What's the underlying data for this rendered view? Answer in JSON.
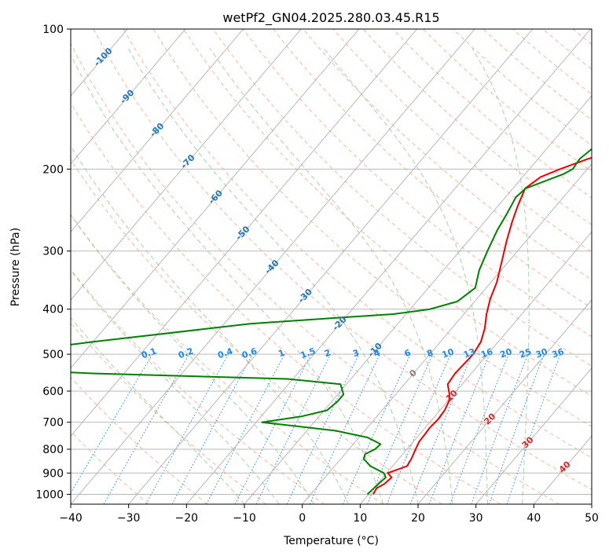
{
  "chart_data": {
    "type": "line",
    "title": "wetPf2_GN04.2025.280.03.45.R15",
    "xlabel": "Temperature (°C)",
    "ylabel": "Pressure (hPa)",
    "x_scale": "linear",
    "y_scale": "log",
    "xlim": [
      -40,
      50
    ],
    "ylim": [
      1050,
      100
    ],
    "x_ticks": [
      "−40",
      "−30",
      "−20",
      "−10",
      "0",
      "10",
      "20",
      "30",
      "40",
      "50"
    ],
    "y_ticks": [
      "100",
      "200",
      "300",
      "400",
      "500",
      "600",
      "700",
      "800",
      "900",
      "1000"
    ],
    "isotherm_labels": [
      "-100",
      "-90",
      "-80",
      "-70",
      "-60",
      "-50",
      "-40",
      "-30",
      "-20",
      "-10",
      "0",
      "10",
      "20",
      "30",
      "40"
    ],
    "mixing_ratio_labels": [
      "0.1",
      "0.2",
      "0.4",
      "0.6",
      "1",
      "1.5",
      "2",
      "3",
      "4",
      "6",
      "8",
      "10",
      "13",
      "16",
      "20",
      "25",
      "30",
      "36"
    ],
    "colors": {
      "temperature": "#ee0000",
      "dewpoint": "#008000",
      "isotherm_cold_label": "#1f77b4",
      "isotherm_warm_label": "#d62728",
      "mixing_ratio": "#1e88e5",
      "dry_adiabat": "#f4a582",
      "moist_adiabat": "#90c890",
      "grid": "#b0b0b0"
    },
    "series": [
      {
        "role": "temperature",
        "points": [
          [
            10.8,
            1000
          ],
          [
            10.5,
            970
          ],
          [
            11.2,
            950
          ],
          [
            11.5,
            920
          ],
          [
            10.2,
            900
          ],
          [
            12.5,
            870
          ],
          [
            12.2,
            840
          ],
          [
            11.5,
            800
          ],
          [
            11,
            770
          ],
          [
            10.9,
            740
          ],
          [
            10.8,
            720
          ],
          [
            11.0,
            690
          ],
          [
            10.8,
            660
          ],
          [
            10.2,
            630
          ],
          [
            9.3,
            610
          ],
          [
            7.5,
            580
          ],
          [
            7.2,
            550
          ],
          [
            7.5,
            500
          ],
          [
            7.0,
            470
          ],
          [
            5.7,
            440
          ],
          [
            3.9,
            410
          ],
          [
            2.3,
            380
          ],
          [
            1.0,
            350
          ],
          [
            -1.6,
            310
          ],
          [
            -3.4,
            285
          ],
          [
            -5.2,
            260
          ],
          [
            -6.6,
            240
          ],
          [
            -7.9,
            220
          ],
          [
            -6.9,
            208
          ],
          [
            -4.7,
            200
          ],
          [
            -1.3,
            190
          ],
          [
            3.7,
            180
          ],
          [
            7.2,
            170
          ],
          [
            9.7,
            155
          ],
          [
            12.2,
            140
          ],
          [
            14.2,
            130
          ],
          [
            15.5,
            120
          ],
          [
            18.9,
            110
          ],
          [
            23.8,
            100
          ]
        ]
      },
      {
        "role": "dewpoint",
        "points": [
          [
            9.8,
            1000
          ],
          [
            10.2,
            950
          ],
          [
            10.5,
            920
          ],
          [
            9.5,
            900
          ],
          [
            6.2,
            870
          ],
          [
            4.0,
            840
          ],
          [
            3.5,
            820
          ],
          [
            4.5,
            800
          ],
          [
            4.7,
            780
          ],
          [
            1.5,
            755
          ],
          [
            -5.0,
            730
          ],
          [
            -19.0,
            700
          ],
          [
            -13.0,
            680
          ],
          [
            -9.5,
            660
          ],
          [
            -9.0,
            630
          ],
          [
            -9.0,
            610
          ],
          [
            -11.0,
            580
          ],
          [
            -21.0,
            565
          ],
          [
            -55.0,
            550
          ],
          [
            -70.0,
            540
          ],
          [
            -70.0,
            490
          ],
          [
            -60.0,
            470
          ],
          [
            -35.5,
            430
          ],
          [
            -22.0,
            418
          ],
          [
            -12.2,
            410
          ],
          [
            -6.6,
            400
          ],
          [
            -3.0,
            385
          ],
          [
            -1.9,
            360
          ],
          [
            -3.8,
            330
          ],
          [
            -5.2,
            300
          ],
          [
            -6.6,
            270
          ],
          [
            -7.3,
            250
          ],
          [
            -8.2,
            230
          ],
          [
            -7.8,
            220
          ],
          [
            -3.4,
            205
          ],
          [
            -2.5,
            200
          ],
          [
            -2.8,
            190
          ],
          [
            -2.1,
            180
          ],
          [
            0.2,
            165
          ],
          [
            3.3,
            150
          ],
          [
            6.8,
            135
          ],
          [
            10.7,
            120
          ],
          [
            13.8,
            110
          ],
          [
            15.0,
            100
          ]
        ]
      }
    ],
    "grid": true
  }
}
